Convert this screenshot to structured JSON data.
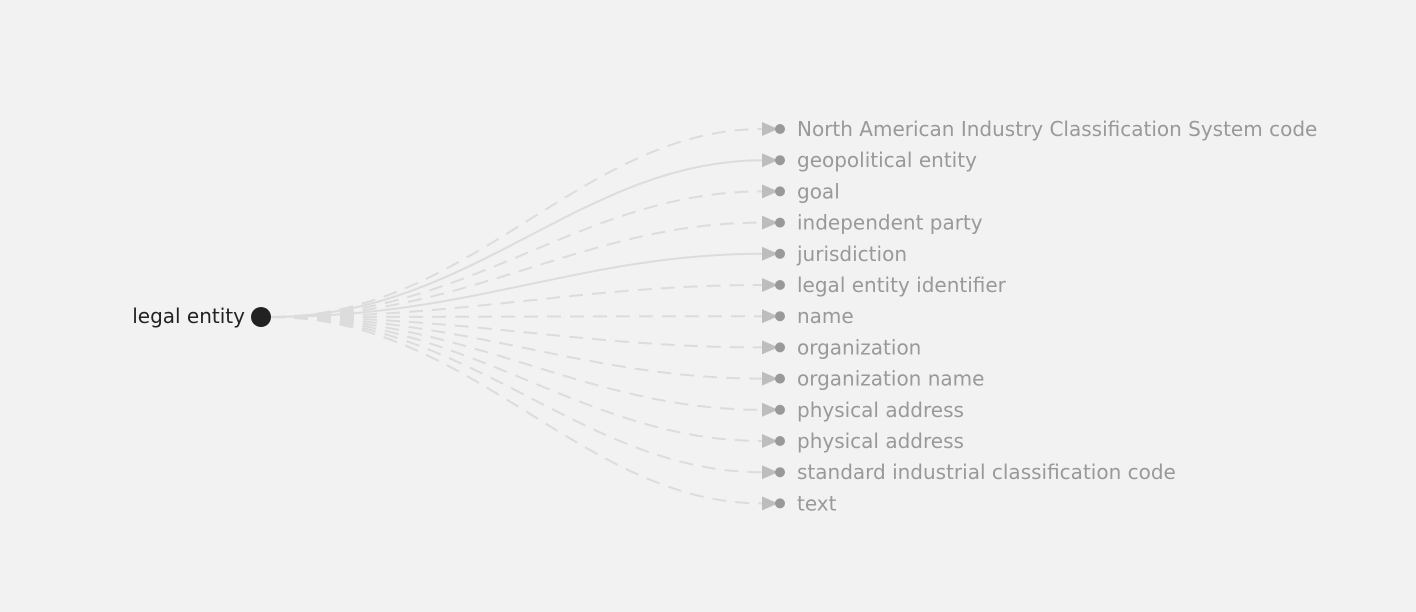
{
  "root": {
    "label": "legal entity"
  },
  "children": [
    {
      "label": "North American Industry Classification System code",
      "style": "dashed"
    },
    {
      "label": "geopolitical entity",
      "style": "solid"
    },
    {
      "label": "goal",
      "style": "dashed"
    },
    {
      "label": "independent party",
      "style": "dashed"
    },
    {
      "label": "jurisdiction",
      "style": "solid"
    },
    {
      "label": "legal entity identifier",
      "style": "dashed"
    },
    {
      "label": "name",
      "style": "dashed"
    },
    {
      "label": "organization",
      "style": "dashed"
    },
    {
      "label": "organization name",
      "style": "dashed"
    },
    {
      "label": "physical address",
      "style": "dashed"
    },
    {
      "label": "physical address",
      "style": "dashed"
    },
    {
      "label": "standard industrial classification code",
      "style": "dashed"
    },
    {
      "label": "text",
      "style": "dashed"
    }
  ],
  "colors": {
    "background": "#f2f2f2",
    "root": "#222222",
    "child_text": "#999999",
    "edge": "#dcdcdc",
    "arrow": "#bdbdbd"
  }
}
